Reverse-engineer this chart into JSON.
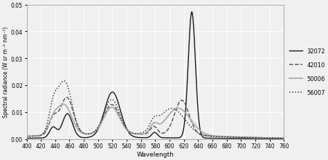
{
  "title": "",
  "xlabel": "Wavelength",
  "ylabel": "Spectral radiance (W sr m⁻² nm⁻¹)",
  "xlim": [
    400,
    760
  ],
  "ylim": [
    0,
    0.05
  ],
  "xticks": [
    400,
    420,
    440,
    460,
    480,
    500,
    520,
    540,
    560,
    580,
    600,
    620,
    640,
    660,
    680,
    700,
    720,
    740,
    760
  ],
  "yticks": [
    0,
    0.01,
    0.02,
    0.03,
    0.04,
    0.05
  ],
  "series": {
    "32072": {
      "color": "#111111",
      "linestyle": "-",
      "linewidth": 1.0
    },
    "42010": {
      "color": "#555555",
      "linestyle": "--",
      "linewidth": 1.1
    },
    "50006": {
      "color": "#aaaaaa",
      "linestyle": "-",
      "linewidth": 1.3
    },
    "56007": {
      "color": "#333333",
      "linestyle": ":",
      "linewidth": 1.1
    }
  },
  "legend_labels": [
    "32072",
    "42010",
    "50006",
    "56007"
  ],
  "background_color": "#f0f0f0",
  "grid_color": "#ffffff",
  "grid_linewidth": 0.7
}
